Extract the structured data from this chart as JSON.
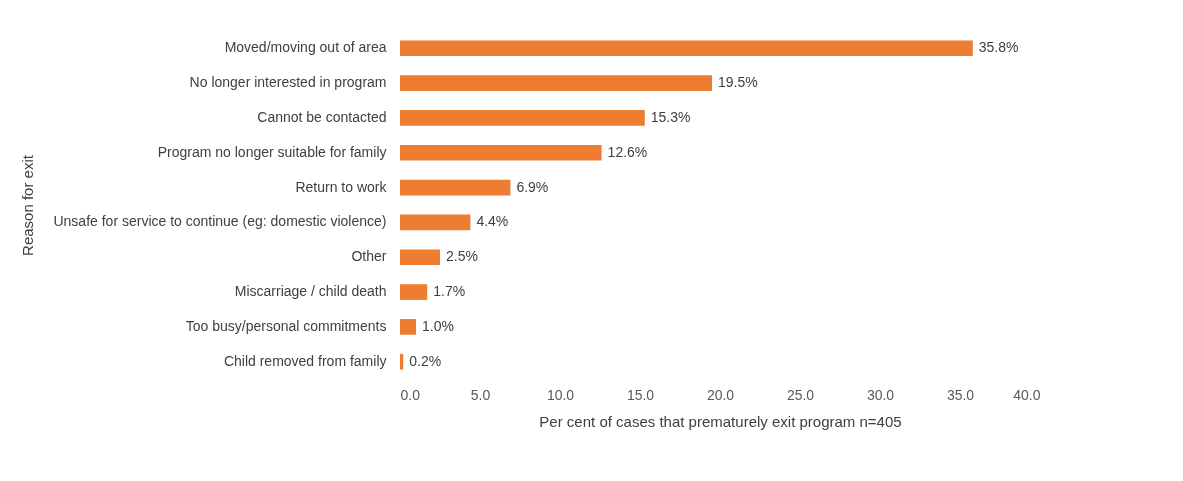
{
  "chart_data": {
    "type": "bar",
    "orientation": "horizontal",
    "xlabel": "Per cent of cases that prematurely exit program n=405",
    "ylabel": "Reason for exit",
    "categories": [
      "Moved/moving out of area",
      "No longer interested in program",
      "Cannot be contacted",
      "Program no longer suitable for family",
      "Return to work",
      "Unsafe for service to continue (eg: domestic violence)",
      "Other",
      "Miscarriage / child death",
      "Too busy/personal commitments",
      "Child removed from family"
    ],
    "values": [
      35.8,
      19.5,
      15.3,
      12.6,
      6.9,
      4.4,
      2.5,
      1.7,
      1.0,
      0.2
    ],
    "value_labels": [
      "35.8%",
      "19.5%",
      "15.3%",
      "12.6%",
      "6.9%",
      "4.4%",
      "2.5%",
      "1.7%",
      "1.0%",
      "0.2%"
    ],
    "color": "#ed7d31",
    "xlim": [
      0,
      40
    ],
    "xticks": [
      {
        "value": 0,
        "label": "0.0"
      },
      {
        "value": 5,
        "label": "5.0"
      },
      {
        "value": 10,
        "label": "10.0"
      },
      {
        "value": 15,
        "label": "15.0"
      },
      {
        "value": 20,
        "label": "20.0"
      },
      {
        "value": 25,
        "label": "25.0"
      },
      {
        "value": 30,
        "label": "30.0"
      },
      {
        "value": 35,
        "label": "35.0"
      },
      {
        "value": 40,
        "label": "40.0"
      }
    ],
    "grid": false
  }
}
